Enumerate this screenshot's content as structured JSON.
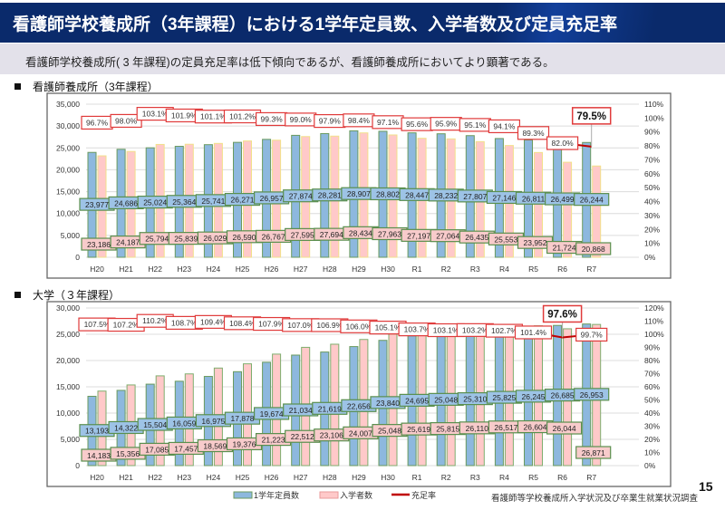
{
  "header": {
    "title": "看護師学校養成所（3年課程）における1学年定員数、入学者数及び定員充足率"
  },
  "summary": {
    "text": "看護師学校養成所( 3 年課程)の定員充足率は低下傾向であるが、看護師養成所においてより顕著である。"
  },
  "legend": {
    "capacity": "1学年定員数",
    "enrolled": "入学者数",
    "rate": "充足率"
  },
  "footer": {
    "source": "看護師等学校養成所入学状況及び卒業生就業状況調査",
    "page_number": "15"
  },
  "colors": {
    "capacity_bar": "#8db8de",
    "enrolled_bar": "#ffc9c9",
    "rate_line": "#c00000",
    "header_bg": "#0a2a6b"
  },
  "chart_data": [
    {
      "type": "bar",
      "title": "看護師養成所（3年課程）",
      "categories": [
        "H20",
        "H21",
        "H22",
        "H23",
        "H24",
        "H25",
        "H26",
        "H27",
        "H28",
        "H29",
        "H30",
        "R1",
        "R2",
        "R3",
        "R4",
        "R5",
        "R6",
        "R7"
      ],
      "series": [
        {
          "name": "1学年定員数",
          "values": [
            23977,
            24686,
            25024,
            25364,
            25741,
            26271,
            26957,
            27874,
            28281,
            28907,
            28802,
            28447,
            28232,
            27807,
            27146,
            26811,
            26499,
            26244
          ]
        },
        {
          "name": "入学者数",
          "values": [
            23186,
            24187,
            25794,
            25839,
            26029,
            26590,
            26767,
            27595,
            27694,
            28434,
            27963,
            27197,
            27064,
            26435,
            25553,
            23952,
            21724,
            20868
          ]
        },
        {
          "name": "充足率",
          "type": "line",
          "axis": "right",
          "values": [
            96.7,
            98.0,
            103.1,
            101.9,
            101.1,
            101.2,
            99.3,
            99.0,
            97.9,
            98.4,
            97.1,
            95.6,
            95.9,
            95.1,
            94.1,
            89.3,
            82.0,
            79.5
          ]
        }
      ],
      "rate_labels": [
        "96.7%",
        "98.0%",
        "103.1%",
        "101.9%",
        "101.1%",
        "101.2%",
        "99.3%",
        "99.0%",
        "97.9%",
        "98.4%",
        "97.1%",
        "95.6%",
        "95.9%",
        "95.1%",
        "94.1%",
        "89.3%",
        "82.0%",
        "79.5%"
      ],
      "capacity_labels": [
        "23,977",
        "24,686",
        "25,024",
        "25,364",
        "25,741",
        "26,271",
        "26,957",
        "27,874",
        "28,281",
        "28,907",
        "28,802",
        "28,447",
        "28,232",
        "27,807",
        "27,146",
        "26,811",
        "26,499",
        "26,244"
      ],
      "enrolled_labels": [
        "23,186",
        "24,187",
        "25,794",
        "25,839",
        "26,029",
        "26,590",
        "26,767",
        "27,595",
        "27,694",
        "28,434",
        "27,963",
        "27,197",
        "27,064",
        "26,435",
        "25,553",
        "23,952",
        "21,724",
        "20,868"
      ],
      "highlight_index": 17,
      "ylim": [
        0,
        35000
      ],
      "y2lim": [
        0,
        110
      ],
      "yticks": [
        "0",
        "5,000",
        "10,000",
        "15,000",
        "20,000",
        "25,000",
        "30,000",
        "35,000"
      ],
      "y2ticks": [
        "0%",
        "10%",
        "20%",
        "30%",
        "40%",
        "50%",
        "60%",
        "70%",
        "80%",
        "90%",
        "100%",
        "110%"
      ],
      "grid": true
    },
    {
      "type": "bar",
      "title": "大学（３年課程）",
      "categories": [
        "H20",
        "H21",
        "H22",
        "H23",
        "H24",
        "H25",
        "H26",
        "H27",
        "H28",
        "H29",
        "H30",
        "R1",
        "R2",
        "R3",
        "R4",
        "R5",
        "R6",
        "R7"
      ],
      "series": [
        {
          "name": "1学年定員数",
          "values": [
            13193,
            14322,
            15504,
            16059,
            16975,
            17878,
            19674,
            21034,
            21619,
            22656,
            23840,
            24695,
            25048,
            25310,
            25825,
            26245,
            26685,
            26953
          ]
        },
        {
          "name": "入学者数",
          "values": [
            14183,
            15356,
            17085,
            17457,
            18569,
            19376,
            21223,
            22512,
            23106,
            24007,
            25048,
            25619,
            25815,
            26110,
            26517,
            26604,
            26044,
            26871
          ]
        },
        {
          "name": "充足率",
          "type": "line",
          "axis": "right",
          "values": [
            107.5,
            107.2,
            110.2,
            108.7,
            109.4,
            108.4,
            107.9,
            107.0,
            106.9,
            106.0,
            105.1,
            103.7,
            103.1,
            103.2,
            102.7,
            101.4,
            97.6,
            99.7
          ]
        }
      ],
      "rate_labels": [
        "107.5%",
        "107.2%",
        "110.2%",
        "108.7%",
        "109.4%",
        "108.4%",
        "107.9%",
        "107.0%",
        "106.9%",
        "106.0%",
        "105.1%",
        "103.7%",
        "103.1%",
        "103.2%",
        "102.7%",
        "101.4%",
        "97.6%",
        "99.7%"
      ],
      "capacity_labels": [
        "13,193",
        "14,322",
        "15,504",
        "16,059",
        "16,975",
        "17,878",
        "19,674",
        "21,034",
        "21,619",
        "22,656",
        "23,840",
        "24,695",
        "25,048",
        "25,310",
        "25,825",
        "26,245",
        "26,685",
        "26,953"
      ],
      "enrolled_labels": [
        "14,183",
        "15,356",
        "17,085",
        "17,457",
        "18,569",
        "19,376",
        "21,223",
        "22,512",
        "23,106",
        "24,007",
        "25,048",
        "25,619",
        "25,815",
        "26,110",
        "26,517",
        "26,604",
        "26,044",
        "26,871"
      ],
      "highlight_index": 16,
      "ylim": [
        0,
        30000
      ],
      "y2lim": [
        0,
        120
      ],
      "yticks": [
        "0",
        "5,000",
        "10,000",
        "15,000",
        "20,000",
        "25,000",
        "30,000"
      ],
      "y2ticks": [
        "0%",
        "10%",
        "20%",
        "30%",
        "40%",
        "50%",
        "60%",
        "70%",
        "80%",
        "90%",
        "100%",
        "110%",
        "120%"
      ],
      "grid": true
    }
  ]
}
